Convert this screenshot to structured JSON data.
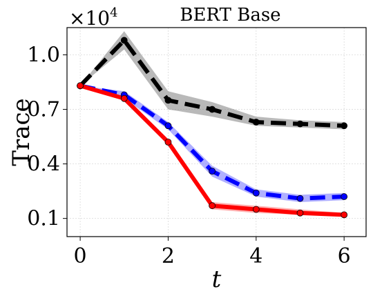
{
  "chart_data": {
    "type": "line",
    "title": "BERT Base",
    "xlabel": "t",
    "ylabel": "Trace",
    "y_multiplier": {
      "base": "×10",
      "exponent": "4"
    },
    "xlim": [
      -0.3,
      6.5
    ],
    "ylim": [
      0.0,
      1.15
    ],
    "x_ticks": [
      0,
      2,
      4,
      6
    ],
    "x_tick_labels": [
      "0",
      "2",
      "4",
      "6"
    ],
    "y_ticks": [
      0.1,
      0.4,
      0.7,
      1.0
    ],
    "y_tick_labels": [
      "0.1",
      "0.4",
      "0.7",
      "1.0"
    ],
    "grid": true,
    "x": [
      0,
      1,
      2,
      3,
      4,
      5,
      6
    ],
    "series": [
      {
        "color": "#000000",
        "band_color": "#7f7f7f",
        "dash": "dashed",
        "values": [
          0.83,
          1.08,
          0.75,
          0.7,
          0.63,
          0.62,
          0.61
        ],
        "lower": [
          0.83,
          1.03,
          0.7,
          0.66,
          0.61,
          0.6,
          0.59
        ],
        "upper": [
          0.83,
          1.13,
          0.8,
          0.74,
          0.66,
          0.64,
          0.63
        ]
      },
      {
        "color": "#0000ff",
        "band_color": "#6f6fff",
        "dash": "dashed",
        "values": [
          0.83,
          0.78,
          0.61,
          0.36,
          0.24,
          0.21,
          0.22
        ],
        "lower": [
          0.83,
          0.76,
          0.59,
          0.33,
          0.22,
          0.19,
          0.2
        ],
        "upper": [
          0.83,
          0.8,
          0.63,
          0.39,
          0.26,
          0.23,
          0.24
        ]
      },
      {
        "color": "#ff0000",
        "band_color": "#ff6f6f",
        "dash": "solid",
        "values": [
          0.83,
          0.76,
          0.52,
          0.17,
          0.15,
          0.13,
          0.12
        ],
        "lower": [
          0.83,
          0.75,
          0.51,
          0.15,
          0.13,
          0.12,
          0.11
        ],
        "upper": [
          0.83,
          0.77,
          0.53,
          0.19,
          0.17,
          0.15,
          0.13
        ]
      }
    ]
  }
}
